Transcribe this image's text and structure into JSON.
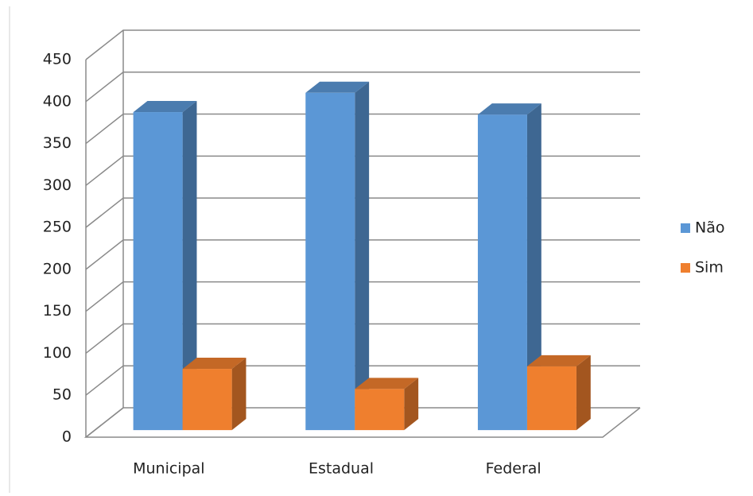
{
  "chart_data": {
    "type": "bar3d",
    "categories": [
      "Municipal",
      "Estadual",
      "Federal"
    ],
    "series": [
      {
        "name": "Não",
        "color": "#5b97d6",
        "values": [
          379,
          402,
          376
        ]
      },
      {
        "name": "Sim",
        "color": "#ef7f2e",
        "values": [
          73,
          49,
          76
        ]
      }
    ],
    "ylim": [
      0,
      450
    ],
    "yticks": [
      0,
      50,
      100,
      150,
      200,
      250,
      300,
      350,
      400,
      450
    ],
    "grid": true,
    "legend": "right"
  }
}
